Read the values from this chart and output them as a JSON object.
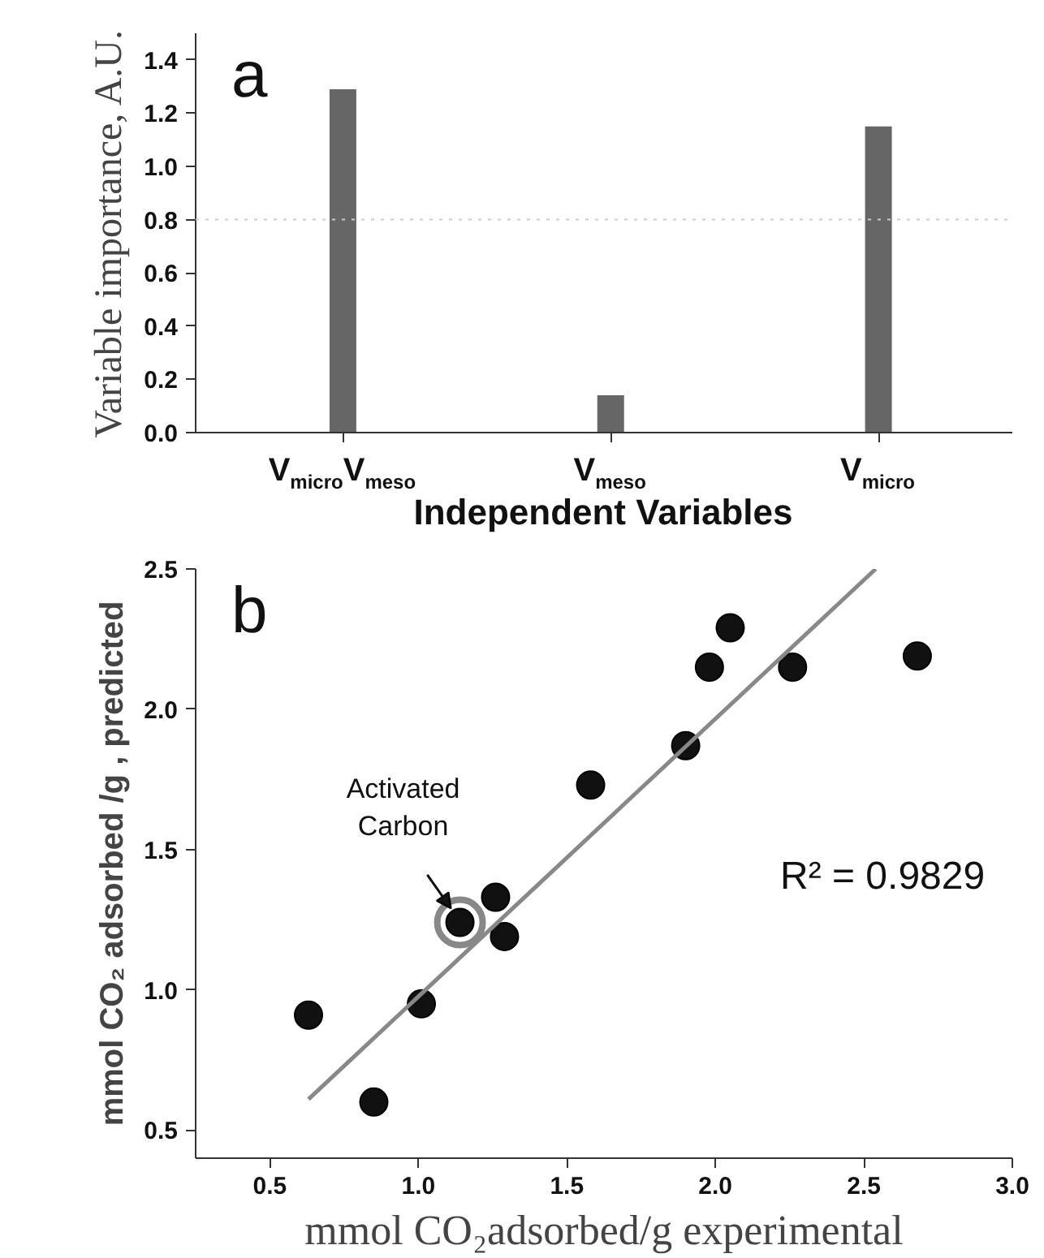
{
  "chart_data": [
    {
      "type": "bar",
      "title": "a",
      "categories": [
        "V$_{micro}$V$_{meso}$",
        "V$_{meso}$",
        "V$_{micro}$"
      ],
      "values": [
        1.29,
        0.14,
        1.15
      ],
      "color": "#666666",
      "xlabel": "Independent Variables",
      "ylabel": "Variable importance, A.U.",
      "ylim": [
        0,
        1.5
      ],
      "yticks": [
        {
          "value": 0,
          "label": "0.0"
        },
        {
          "value": 0.2,
          "label": "0.2"
        },
        {
          "value": 0.4,
          "label": "0.4"
        },
        {
          "value": 0.6,
          "label": "0.6"
        },
        {
          "value": 0.8,
          "label": "0.8"
        },
        {
          "value": 1.0,
          "label": "1.0"
        },
        {
          "value": 1.2,
          "label": "1.2"
        },
        {
          "value": 1.4,
          "label": "1.4"
        }
      ],
      "ref_lines": [
        {
          "axis": "y",
          "value": 0.8,
          "color": "#cccccc",
          "line_style": "dotted"
        }
      ],
      "grid": false
    },
    {
      "type": "scatter",
      "title": "b",
      "xlabel": "mmol CO₂adsorbed/g experimental",
      "ylabel": "mmol CO₂ adsorbed /g , predicted",
      "xlim": [
        0.25,
        3.0
      ],
      "ylim": [
        0.4,
        2.5
      ],
      "xticks": [
        0.5,
        {
          "value": 1.0,
          "label": "1.0"
        },
        1.5,
        {
          "value": 2.0,
          "label": "2.0"
        },
        2.5,
        {
          "value": 3.0,
          "label": "3.0"
        }
      ],
      "yticks": [
        0.5,
        {
          "value": 1.0,
          "label": "1.0"
        },
        1.5,
        {
          "value": 2.0,
          "label": "2.0"
        },
        2.5
      ],
      "grid": false,
      "series": [
        {
          "type": "scatter",
          "marker": "circle",
          "color": "#111111",
          "x": [
            0.63,
            0.85,
            1.01,
            1.14,
            1.26,
            1.29,
            1.58,
            1.9,
            1.98,
            2.05,
            2.26,
            2.68
          ],
          "values": [
            0.91,
            0.6,
            0.95,
            1.24,
            1.33,
            1.19,
            1.73,
            1.87,
            2.15,
            2.29,
            2.15,
            2.19
          ]
        },
        {
          "type": "line",
          "color": "#888888",
          "x": [
            0.63,
            2.54
          ],
          "values": [
            0.61,
            2.5
          ]
        }
      ],
      "annotations": [
        "R² = 0.9829",
        {
          "text": "Activated\nCarbon",
          "x": 1.14,
          "y": 1.24
        }
      ]
    }
  ]
}
